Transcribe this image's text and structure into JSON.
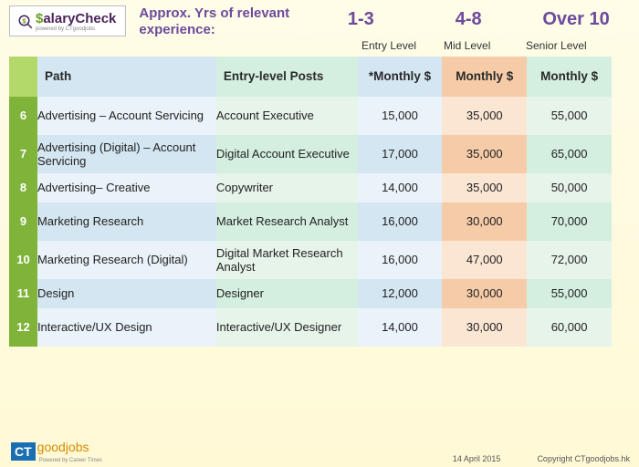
{
  "logo": {
    "salary_prefix": "$",
    "salary_text": "alaryCheck",
    "sub": "powered by CTgoodjobs"
  },
  "header": {
    "experience_label": "Approx. Yrs of relevant experience:",
    "ranges": [
      "1-3",
      "4-8",
      "Over 10"
    ],
    "levels": [
      "Entry Level",
      "Mid Level",
      "Senior Level"
    ]
  },
  "columns": {
    "path": "Path",
    "posts": "Entry-level Posts",
    "m1": "*Monthly $",
    "m2": "Monthly $",
    "m3": "Monthly $"
  },
  "rows": [
    {
      "n": "6",
      "path": "Advertising – Account Servicing",
      "post": "Account Executive",
      "m1": "15,000",
      "m2": "35,000",
      "m3": "55,000"
    },
    {
      "n": "7",
      "path": "Advertising (Digital) – Account Servicing",
      "post": "Digital Account Executive",
      "m1": "17,000",
      "m2": "35,000",
      "m3": "65,000"
    },
    {
      "n": "8",
      "path": "Advertising– Creative",
      "post": "Copywriter",
      "m1": "14,000",
      "m2": "35,000",
      "m3": "50,000"
    },
    {
      "n": "9",
      "path": "Marketing Research",
      "post": "Market Research Analyst",
      "m1": "16,000",
      "m2": "30,000",
      "m3": "70,000"
    },
    {
      "n": "10",
      "path": "Marketing Research (Digital)",
      "post": "Digital Market Research Analyst",
      "m1": "16,000",
      "m2": "47,000",
      "m3": "72,000"
    },
    {
      "n": "11",
      "path": "Design",
      "post": "Designer",
      "m1": "12,000",
      "m2": "30,000",
      "m3": "55,000"
    },
    {
      "n": "12",
      "path": "Interactive/UX Design",
      "post": "Interactive/UX Designer",
      "m1": "14,000",
      "m2": "30,000",
      "m3": "60,000"
    }
  ],
  "footer": {
    "ct": "CT",
    "goodjobs": "goodjobs",
    "sub": "Powered by Career Times",
    "date": "14 April 2015",
    "copyright": "Copyright CTgoodjobs.hk"
  },
  "style": {
    "colors": {
      "page_bg_top": "#fffce8",
      "page_bg_bottom": "#fff9d6",
      "purple": "#6c4a9c",
      "green_num": "#7fb339",
      "green_head": "#b4d96b",
      "blue_light": "#eaf2fa",
      "blue_mid": "#d4e6f1",
      "green_light": "#e7f4ea",
      "green_mid": "#d4efdf",
      "orange_light": "#fbe6d4",
      "orange_mid": "#f6cba8",
      "ct_blue": "#1a6fb3",
      "goodjobs_orange": "#d68b00"
    },
    "fontsizes": {
      "exp_val": 20,
      "exp_label": 15,
      "body": 13,
      "header": 13.5,
      "footer": 9
    }
  }
}
